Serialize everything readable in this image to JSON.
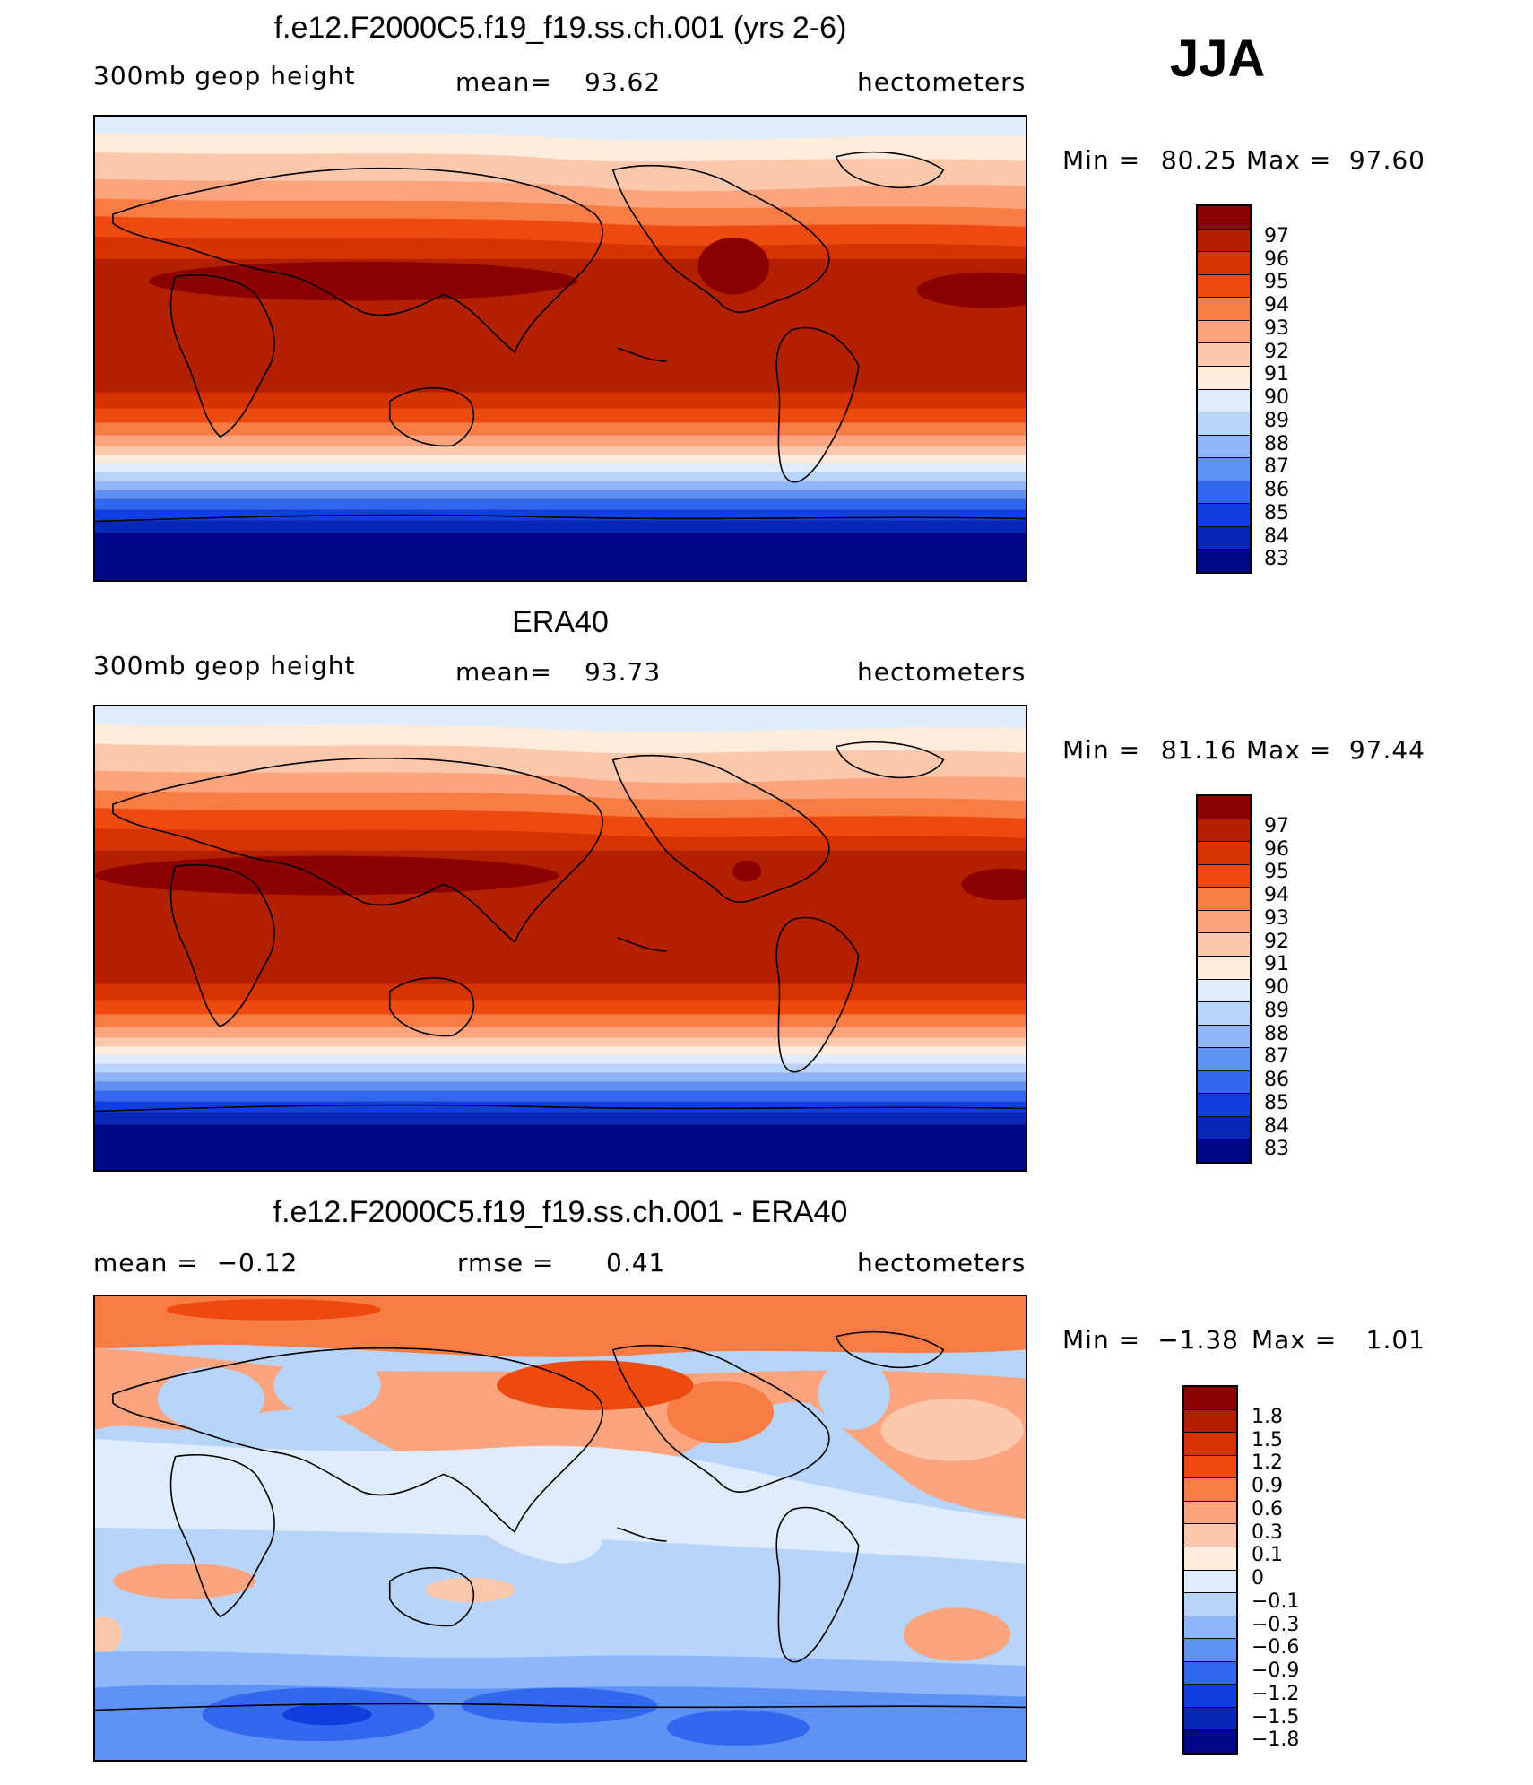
{
  "season": "JJA",
  "panels": [
    {
      "title": "f.e12.F2000C5.f19_f19.ss.ch.001 (yrs 2-6)",
      "left": "300mb geop height",
      "center_label": "mean=",
      "center_value": "93.62",
      "units": "hectometers",
      "min_label": "Min =",
      "min": "80.25",
      "max_label": "Max =",
      "max": "97.60",
      "levels": [
        "97",
        "96",
        "95",
        "94",
        "93",
        "92",
        "91",
        "90",
        "89",
        "88",
        "87",
        "86",
        "85",
        "84",
        "83"
      ]
    },
    {
      "title": "ERA40",
      "left": "300mb geop height",
      "center_label": "mean=",
      "center_value": "93.73",
      "units": "hectometers",
      "min_label": "Min =",
      "min": "81.16",
      "max_label": "Max =",
      "max": "97.44",
      "levels": [
        "97",
        "96",
        "95",
        "94",
        "93",
        "92",
        "91",
        "90",
        "89",
        "88",
        "87",
        "86",
        "85",
        "84",
        "83"
      ]
    },
    {
      "title": "f.e12.F2000C5.f19_f19.ss.ch.001 - ERA40",
      "left": "mean =  −0.12",
      "center_label": "rmse =",
      "center_value": "0.41",
      "units": "hectometers",
      "min_label": "Min =",
      "min": "−1.38",
      "max_label": "Max =",
      "max": "1.01",
      "levels": [
        "1.8",
        "1.5",
        "1.2",
        "0.9",
        "0.6",
        "0.3",
        "0.1",
        "0",
        "−0.1",
        "−0.3",
        "−0.6",
        "−0.9",
        "−1.2",
        "−1.5",
        "−1.8"
      ]
    }
  ],
  "colors": {
    "abs_scale": [
      "#8b0000",
      "#b32000",
      "#d63300",
      "#ee4a10",
      "#f77d45",
      "#fba47d",
      "#fcc8ab",
      "#fdebdb",
      "#deecfb",
      "#b7d4fb",
      "#8eb6fb",
      "#5f92f5",
      "#3268ee",
      "#0f3fde",
      "#0828b5",
      "#00088a"
    ],
    "diff_scale": [
      "#8b0000",
      "#b32000",
      "#d63300",
      "#ee4a10",
      "#f77d45",
      "#fba47d",
      "#fcc8ab",
      "#fdebdb",
      "#deecfb",
      "#b7d4fb",
      "#8eb6fb",
      "#5f92f5",
      "#3268ee",
      "#0f3fde",
      "#0828b5",
      "#00088a"
    ]
  }
}
